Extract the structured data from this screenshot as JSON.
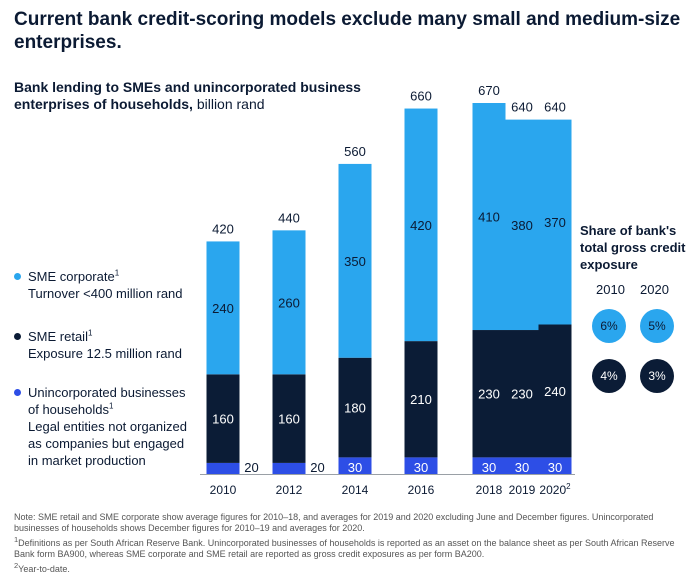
{
  "title": "Current bank credit-scoring models exclude many small and medium-size enterprises.",
  "subtitle_bold": "Bank lending to SMEs and unincorporated business enterprises of households,",
  "subtitle_unit": "billion rand",
  "colors": {
    "sme_corporate": "#2aa6ee",
    "sme_retail": "#0b1c36",
    "unincorporated": "#2d4ee6",
    "text_dark": "#0b1a33",
    "text_light": "#ffffff",
    "axis": "#9aa0a6"
  },
  "legend": [
    {
      "key": "sme_corporate",
      "name": "SME corporate",
      "sup": "1",
      "desc": "Turnover <400 million rand"
    },
    {
      "key": "sme_retail",
      "name": "SME retail",
      "sup": "1",
      "desc": "Exposure 12.5 million rand"
    },
    {
      "key": "unincorporated",
      "name": "Unincorporated businesses of households",
      "sup": "1",
      "desc": "Legal entities not organized as companies but engaged in market production"
    }
  ],
  "chart_data": {
    "type": "bar",
    "stacked": true,
    "title": "Bank lending to SMEs and unincorporated business enterprises of households",
    "ylabel": "billion rand",
    "categories": [
      "2010",
      "2012",
      "2014",
      "2016",
      "2018",
      "2019",
      "2020"
    ],
    "category_sups": [
      "",
      "",
      "",
      "",
      "",
      "",
      "2"
    ],
    "totals": [
      420,
      440,
      560,
      660,
      670,
      640,
      640
    ],
    "series": [
      {
        "name": "Unincorporated businesses of households",
        "key": "unincorporated",
        "values": [
          20,
          20,
          30,
          30,
          30,
          30,
          30
        ]
      },
      {
        "name": "SME retail",
        "key": "sme_retail",
        "values": [
          160,
          160,
          180,
          210,
          230,
          230,
          240
        ]
      },
      {
        "name": "SME corporate",
        "key": "sme_corporate",
        "values": [
          240,
          260,
          350,
          420,
          410,
          380,
          370
        ]
      }
    ],
    "ylim": [
      0,
      670
    ],
    "grid": false
  },
  "share": {
    "title": "Share of bank's total gross credit exposure",
    "years": [
      "2010",
      "2020"
    ],
    "sme_corporate": [
      "6%",
      "5%"
    ],
    "sme_retail": [
      "4%",
      "3%"
    ]
  },
  "notes": {
    "main": "Note: SME retail and SME corporate show average figures for 2010–18, and averages for 2019 and 2020 excluding June and December figures. Unincorporated businesses of households shows December figures for 2010–19 and averages for 2020.",
    "fn1_sup": "1",
    "fn1": "Definitions as per South African Reserve Bank. Unincorporated businesses of households is reported as an asset on the balance sheet as per South African Reserve Bank form BA900, whereas SME corporate and SME retail are reported as gross credit exposures as per form BA200.",
    "fn2_sup": "2",
    "fn2": "Year-to-date."
  }
}
